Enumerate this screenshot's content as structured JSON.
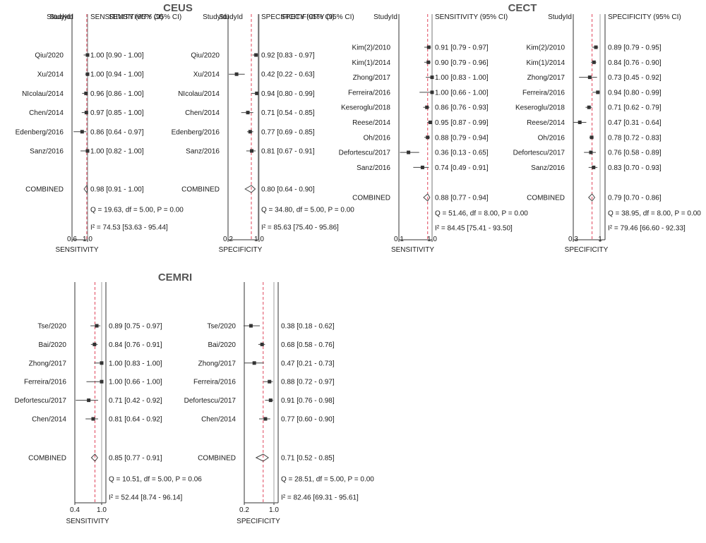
{
  "groups": [
    {
      "title": "CEUS",
      "panels": [
        0,
        1
      ]
    },
    {
      "title": "CECT",
      "panels": [
        2,
        3
      ]
    },
    {
      "title": "CEMRI",
      "panels": [
        4,
        5
      ]
    }
  ],
  "chart_data": [
    {
      "type": "forest",
      "group": "CEUS",
      "col_header": "StudyId",
      "stat_header": "SENSITIVITY (95% CI)",
      "xlabel": "SENSITIVITY",
      "xlim": [
        0.6,
        1.0
      ],
      "ticks": [
        {
          "v": 0.6,
          "label": "0.6"
        },
        {
          "v": 1.0,
          "label": "1.0"
        }
      ],
      "ref_line": 1.0,
      "combined_line": 0.98,
      "studies": [
        {
          "label": "Qiu/2020",
          "est": 1.0,
          "lo": 0.9,
          "hi": 1.0,
          "text": "1.00 [0.90 - 1.00]"
        },
        {
          "label": "Xu/2014",
          "est": 1.0,
          "lo": 0.94,
          "hi": 1.0,
          "text": "1.00 [0.94 - 1.00]"
        },
        {
          "label": "NIcolau/2014",
          "est": 0.96,
          "lo": 0.86,
          "hi": 1.0,
          "text": "0.96 [0.86 - 1.00]"
        },
        {
          "label": "Chen/2014",
          "est": 0.97,
          "lo": 0.85,
          "hi": 1.0,
          "text": "0.97 [0.85 - 1.00]"
        },
        {
          "label": "Edenberg/2016",
          "est": 0.86,
          "lo": 0.64,
          "hi": 0.97,
          "text": "0.86 [0.64 - 0.97]"
        },
        {
          "label": "Sanz/2016",
          "est": 1.0,
          "lo": 0.82,
          "hi": 1.0,
          "text": "1.00 [0.82 - 1.00]"
        }
      ],
      "combined": {
        "label": "COMBINED",
        "est": 0.98,
        "lo": 0.91,
        "hi": 1.0,
        "text": "0.98 [0.91 - 1.00]"
      },
      "q_text": "Q = 19.63, df = 5.00, P = 0.00",
      "i2_text": "I² = 74.53 [53.63 - 95.44]"
    },
    {
      "type": "forest",
      "group": "CEUS",
      "col_header": "StudyId",
      "stat_header": "SPECIFICITY (95% CI)",
      "xlabel": "SPECIFICITY",
      "xlim": [
        0.2,
        1.0
      ],
      "ticks": [
        {
          "v": 0.2,
          "label": "0.2"
        },
        {
          "v": 1.0,
          "label": "1.0"
        }
      ],
      "ref_line": 1.0,
      "combined_line": 0.8,
      "studies": [
        {
          "label": "Qiu/2020",
          "est": 0.92,
          "lo": 0.83,
          "hi": 0.97,
          "text": "0.92 [0.83 - 0.97]"
        },
        {
          "label": "Xu/2014",
          "est": 0.42,
          "lo": 0.22,
          "hi": 0.63,
          "text": "0.42 [0.22 - 0.63]"
        },
        {
          "label": "NIcolau/2014",
          "est": 0.94,
          "lo": 0.8,
          "hi": 0.99,
          "text": "0.94 [0.80 - 0.99]"
        },
        {
          "label": "Chen/2014",
          "est": 0.71,
          "lo": 0.54,
          "hi": 0.85,
          "text": "0.71 [0.54 - 0.85]"
        },
        {
          "label": "Edenberg/2016",
          "est": 0.77,
          "lo": 0.69,
          "hi": 0.85,
          "text": "0.77 [0.69 - 0.85]"
        },
        {
          "label": "Sanz/2016",
          "est": 0.81,
          "lo": 0.67,
          "hi": 0.91,
          "text": "0.81 [0.67 - 0.91]"
        }
      ],
      "combined": {
        "label": "COMBINED",
        "est": 0.8,
        "lo": 0.64,
        "hi": 0.9,
        "text": "0.80 [0.64 - 0.90]"
      },
      "q_text": "Q = 34.80, df = 5.00, P = 0.00",
      "i2_text": "I² = 85.63 [75.40 - 95.86]"
    },
    {
      "type": "forest",
      "group": "CECT",
      "col_header": "StudyId",
      "stat_header": "SENSITIVITY (95% CI)",
      "xlabel": "SENSITIVITY",
      "xlim": [
        0.1,
        1.0
      ],
      "ticks": [
        {
          "v": 0.1,
          "label": "0.1"
        },
        {
          "v": 1.0,
          "label": "1.0"
        }
      ],
      "ref_line": 1.0,
      "combined_line": 0.88,
      "studies": [
        {
          "label": "Kim(2)/2010",
          "est": 0.91,
          "lo": 0.79,
          "hi": 0.97,
          "text": "0.91 [0.79 - 0.97]"
        },
        {
          "label": "Kim(1)/2014",
          "est": 0.9,
          "lo": 0.79,
          "hi": 0.96,
          "text": "0.90 [0.79 - 0.96]"
        },
        {
          "label": "Zhong/2017",
          "est": 1.0,
          "lo": 0.83,
          "hi": 1.0,
          "text": "1.00 [0.83 - 1.00]"
        },
        {
          "label": "Ferreira/2016",
          "est": 1.0,
          "lo": 0.66,
          "hi": 1.0,
          "text": "1.00 [0.66 - 1.00]"
        },
        {
          "label": "Keseroglu/2018",
          "est": 0.86,
          "lo": 0.76,
          "hi": 0.93,
          "text": "0.86 [0.76 - 0.93]"
        },
        {
          "label": "Reese/2014",
          "est": 0.95,
          "lo": 0.87,
          "hi": 0.99,
          "text": "0.95 [0.87 - 0.99]"
        },
        {
          "label": "Oh/2016",
          "est": 0.88,
          "lo": 0.79,
          "hi": 0.94,
          "text": "0.88 [0.79 - 0.94]"
        },
        {
          "label": "Defortescu/2017",
          "est": 0.36,
          "lo": 0.13,
          "hi": 0.65,
          "text": "0.36 [0.13 - 0.65]"
        },
        {
          "label": "Sanz/2016",
          "est": 0.74,
          "lo": 0.49,
          "hi": 0.91,
          "text": "0.74 [0.49 - 0.91]"
        }
      ],
      "combined": {
        "label": "COMBINED",
        "est": 0.88,
        "lo": 0.77,
        "hi": 0.94,
        "text": "0.88 [0.77 - 0.94]"
      },
      "q_text": "Q = 51.46, df = 8.00, P = 0.00",
      "i2_text": "I² = 84.45 [75.41 - 93.50]"
    },
    {
      "type": "forest",
      "group": "CECT",
      "col_header": "StudyId",
      "stat_header": "SPECIFICITY (95% CI)",
      "xlabel": "SPECIFICITY",
      "xlim": [
        0.3,
        1.0
      ],
      "ticks": [
        {
          "v": 0.3,
          "label": "0.3"
        },
        {
          "v": 1.0,
          "label": "1"
        }
      ],
      "ref_line": 1.0,
      "combined_line": 0.79,
      "studies": [
        {
          "label": "Kim(2)/2010",
          "est": 0.89,
          "lo": 0.79,
          "hi": 0.95,
          "text": "0.89 [0.79 - 0.95]"
        },
        {
          "label": "Kim(1)/2014",
          "est": 0.84,
          "lo": 0.76,
          "hi": 0.9,
          "text": "0.84 [0.76 - 0.90]"
        },
        {
          "label": "Zhong/2017",
          "est": 0.73,
          "lo": 0.45,
          "hi": 0.92,
          "text": "0.73 [0.45 - 0.92]"
        },
        {
          "label": "Ferreira/2016",
          "est": 0.94,
          "lo": 0.8,
          "hi": 0.99,
          "text": "0.94 [0.80 - 0.99]"
        },
        {
          "label": "Keseroglu/2018",
          "est": 0.71,
          "lo": 0.62,
          "hi": 0.79,
          "text": "0.71 [0.62 - 0.79]"
        },
        {
          "label": "Reese/2014",
          "est": 0.47,
          "lo": 0.31,
          "hi": 0.64,
          "text": "0.47 [0.31 - 0.64]"
        },
        {
          "label": "Oh/2016",
          "est": 0.78,
          "lo": 0.72,
          "hi": 0.83,
          "text": "0.78 [0.72 - 0.83]"
        },
        {
          "label": "Defortescu/2017",
          "est": 0.76,
          "lo": 0.58,
          "hi": 0.89,
          "text": "0.76 [0.58 - 0.89]"
        },
        {
          "label": "Sanz/2016",
          "est": 0.83,
          "lo": 0.7,
          "hi": 0.93,
          "text": "0.83 [0.70 - 0.93]"
        }
      ],
      "combined": {
        "label": "COMBINED",
        "est": 0.79,
        "lo": 0.7,
        "hi": 0.86,
        "text": "0.79 [0.70 - 0.86]"
      },
      "q_text": "Q = 38.95, df = 8.00, P = 0.00",
      "i2_text": "I² = 79.46 [66.60 - 92.33]"
    },
    {
      "type": "forest",
      "group": "CEMRI",
      "col_header": "StudyId",
      "stat_header": "SENSITIVITY (95% CI)",
      "xlabel": "SENSITIVITY",
      "xlim": [
        0.4,
        1.0
      ],
      "ticks": [
        {
          "v": 0.4,
          "label": "0.4"
        },
        {
          "v": 1.0,
          "label": "1.0"
        }
      ],
      "ref_line": 1.0,
      "combined_line": 0.85,
      "studies": [
        {
          "label": "Tse/2020",
          "est": 0.89,
          "lo": 0.75,
          "hi": 0.97,
          "text": "0.89 [0.75 - 0.97]"
        },
        {
          "label": "Bai/2020",
          "est": 0.84,
          "lo": 0.76,
          "hi": 0.91,
          "text": "0.84 [0.76 - 0.91]"
        },
        {
          "label": "Zhong/2017",
          "est": 1.0,
          "lo": 0.83,
          "hi": 1.0,
          "text": "1.00 [0.83 - 1.00]"
        },
        {
          "label": "Ferreira/2016",
          "est": 1.0,
          "lo": 0.66,
          "hi": 1.0,
          "text": "1.00 [0.66 - 1.00]"
        },
        {
          "label": "Defortescu/2017",
          "est": 0.71,
          "lo": 0.42,
          "hi": 0.92,
          "text": "0.71 [0.42 - 0.92]"
        },
        {
          "label": "Chen/2014",
          "est": 0.81,
          "lo": 0.64,
          "hi": 0.92,
          "text": "0.81 [0.64 - 0.92]"
        }
      ],
      "combined": {
        "label": "COMBINED",
        "est": 0.85,
        "lo": 0.77,
        "hi": 0.91,
        "text": "0.85 [0.77 - 0.91]"
      },
      "q_text": "Q = 10.51, df = 5.00, P = 0.06",
      "i2_text": "I² = 52.44 [8.74 - 96.14]"
    },
    {
      "type": "forest",
      "group": "CEMRI",
      "col_header": "StudyId",
      "stat_header": "SPECIFICITY (95% CI)",
      "xlabel": "SPECIFICITY",
      "xlim": [
        0.2,
        1.0
      ],
      "ticks": [
        {
          "v": 0.2,
          "label": "0.2"
        },
        {
          "v": 1.0,
          "label": "1.0"
        }
      ],
      "ref_line": 1.0,
      "combined_line": 0.71,
      "studies": [
        {
          "label": "Tse/2020",
          "est": 0.38,
          "lo": 0.18,
          "hi": 0.62,
          "text": "0.38 [0.18 - 0.62]"
        },
        {
          "label": "Bai/2020",
          "est": 0.68,
          "lo": 0.58,
          "hi": 0.76,
          "text": "0.68 [0.58 - 0.76]"
        },
        {
          "label": "Zhong/2017",
          "est": 0.47,
          "lo": 0.21,
          "hi": 0.73,
          "text": "0.47 [0.21 - 0.73]"
        },
        {
          "label": "Ferreira/2016",
          "est": 0.88,
          "lo": 0.72,
          "hi": 0.97,
          "text": "0.88 [0.72 - 0.97]"
        },
        {
          "label": "Defortescu/2017",
          "est": 0.91,
          "lo": 0.76,
          "hi": 0.98,
          "text": "0.91 [0.76 - 0.98]"
        },
        {
          "label": "Chen/2014",
          "est": 0.77,
          "lo": 0.6,
          "hi": 0.9,
          "text": "0.77 [0.60 - 0.90]"
        }
      ],
      "combined": {
        "label": "COMBINED",
        "est": 0.71,
        "lo": 0.52,
        "hi": 0.85,
        "text": "0.71 [0.52 - 0.85]"
      },
      "q_text": "Q = 28.51, df = 5.00, P = 0.00",
      "i2_text": "I² = 82.46 [69.31 - 95.61]"
    }
  ]
}
